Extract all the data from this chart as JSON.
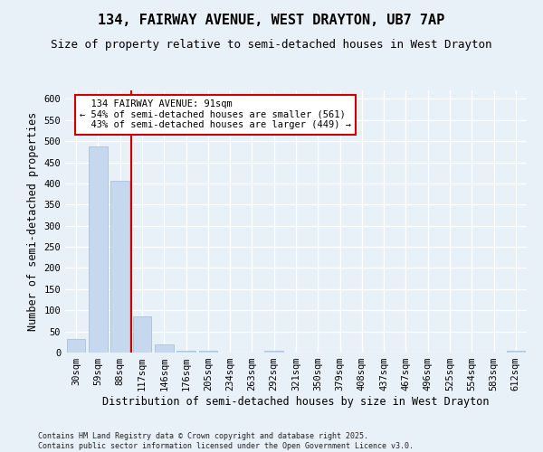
{
  "title": "134, FAIRWAY AVENUE, WEST DRAYTON, UB7 7AP",
  "subtitle": "Size of property relative to semi-detached houses in West Drayton",
  "xlabel": "Distribution of semi-detached houses by size in West Drayton",
  "ylabel": "Number of semi-detached properties",
  "footer": "Contains HM Land Registry data © Crown copyright and database right 2025.\nContains public sector information licensed under the Open Government Licence v3.0.",
  "bin_labels": [
    "30sqm",
    "59sqm",
    "88sqm",
    "117sqm",
    "146sqm",
    "176sqm",
    "205sqm",
    "234sqm",
    "263sqm",
    "292sqm",
    "321sqm",
    "350sqm",
    "379sqm",
    "408sqm",
    "437sqm",
    "467sqm",
    "496sqm",
    "525sqm",
    "554sqm",
    "583sqm",
    "612sqm"
  ],
  "bar_values": [
    33,
    487,
    407,
    86,
    20,
    5,
    5,
    0,
    0,
    4,
    0,
    0,
    0,
    0,
    0,
    0,
    0,
    0,
    0,
    0,
    4
  ],
  "bar_color": "#c5d8ee",
  "bar_edge_color": "#9bbcd8",
  "property_label": "134 FAIRWAY AVENUE: 91sqm",
  "pct_smaller": 54,
  "n_smaller": 561,
  "pct_larger": 43,
  "n_larger": 449,
  "vline_color": "#cc0000",
  "annotation_box_color": "#cc0000",
  "ylim": [
    0,
    620
  ],
  "yticks": [
    0,
    50,
    100,
    150,
    200,
    250,
    300,
    350,
    400,
    450,
    500,
    550,
    600
  ],
  "background_color": "#e8f0f8",
  "grid_color": "#ffffff",
  "title_fontsize": 11,
  "subtitle_fontsize": 9,
  "axis_label_fontsize": 8.5,
  "tick_fontsize": 7.5,
  "annotation_fontsize": 7.5,
  "footer_fontsize": 6
}
